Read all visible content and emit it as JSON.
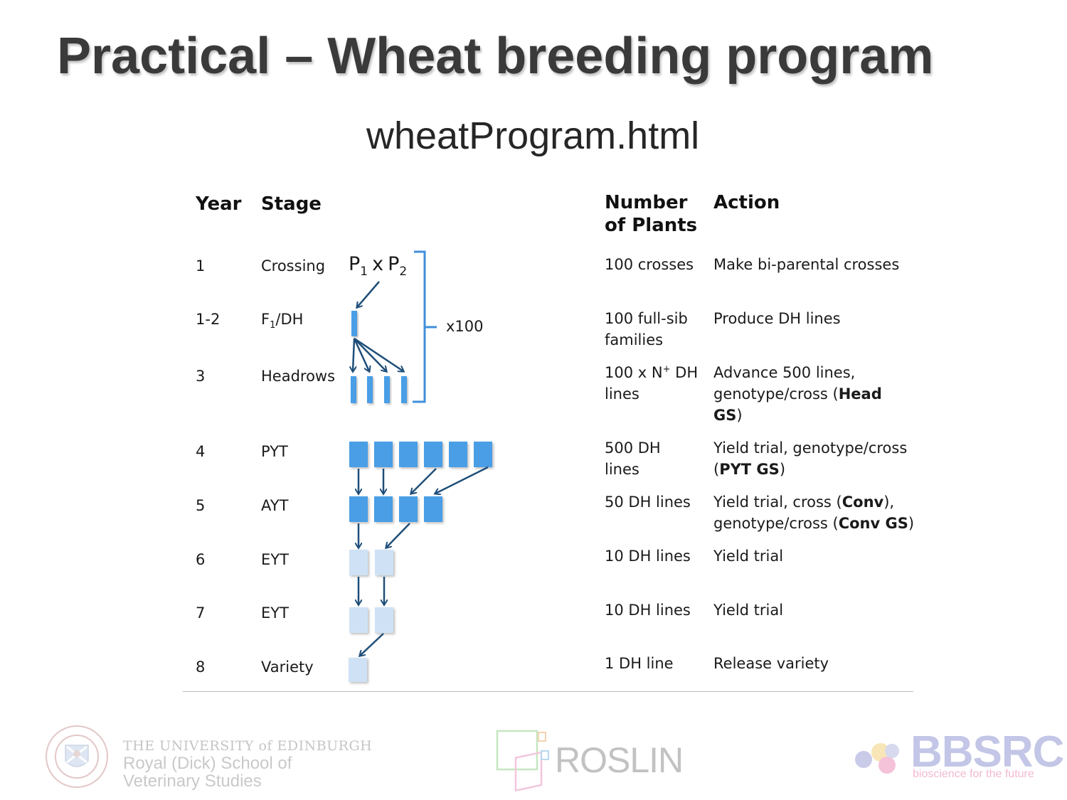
{
  "slide": {
    "title": "Practical – Wheat breeding program",
    "subtitle": "wheatProgram.html"
  },
  "table": {
    "headers": {
      "year": "Year",
      "stage": "Stage",
      "number_line1": "Number",
      "number_line2": "of Plants",
      "action": "Action"
    },
    "rows": [
      {
        "year": "1",
        "stage": "Crossing",
        "number": "100 crosses",
        "action": "Make bi-parental crosses"
      },
      {
        "year": "1-2",
        "stage_pre": "F",
        "stage_sub": "1",
        "stage_post": "/DH",
        "number_line1": "100 full-sib",
        "number_line2": "families",
        "action": "Produce DH lines"
      },
      {
        "year": "3",
        "stage": "Headrows",
        "number_pre": "100 x N",
        "number_sup": "+",
        "number_post": " DH",
        "number_line2": "lines",
        "action_line1": "Advance 500 lines,",
        "action_line2_pre": "genotype/cross (",
        "action_line2_bold": "Head",
        "action_line3_bold": "GS",
        "action_line3_post": ")"
      },
      {
        "year": "4",
        "stage": "PYT",
        "number_line1": "500 DH",
        "number_line2": "lines",
        "action_line1": "Yield trial, genotype/cross",
        "action_line2_pre": "(",
        "action_line2_bold": "PYT GS",
        "action_line2_post": ")"
      },
      {
        "year": "5",
        "stage": "AYT",
        "number": "50 DH lines",
        "action_line1_pre": "Yield trial, cross (",
        "action_line1_bold": "Conv",
        "action_line1_post": "),",
        "action_line2_pre": "genotype/cross (",
        "action_line2_bold": "Conv GS",
        "action_line2_post": ")"
      },
      {
        "year": "6",
        "stage": "EYT",
        "number": "10 DH lines",
        "action": "Yield trial"
      },
      {
        "year": "7",
        "stage": "EYT",
        "number": "10 DH lines",
        "action": "Yield trial"
      },
      {
        "year": "8",
        "stage": "Variety",
        "number": "1 DH line",
        "action": "Release variety"
      }
    ]
  },
  "diagram": {
    "p1": "P",
    "p1_sub": "1",
    "x": "x",
    "p2": "P",
    "p2_sub": "2",
    "multiplier": "x100",
    "colors": {
      "dark": "#1f4e79",
      "mid": "#4a9ee6",
      "light": "#cfe2f5",
      "bracket": "#3f8fdc"
    }
  },
  "logos": {
    "edinburgh_line1": "THE UNIVERSITY of EDINBURGH",
    "edinburgh_line2": "Royal (Dick) School of",
    "edinburgh_line3": "Veterinary Studies",
    "roslin": "ROSLIN",
    "bbsrc": "BBSRC",
    "bbsrc_tagline": "bioscience for the future"
  }
}
